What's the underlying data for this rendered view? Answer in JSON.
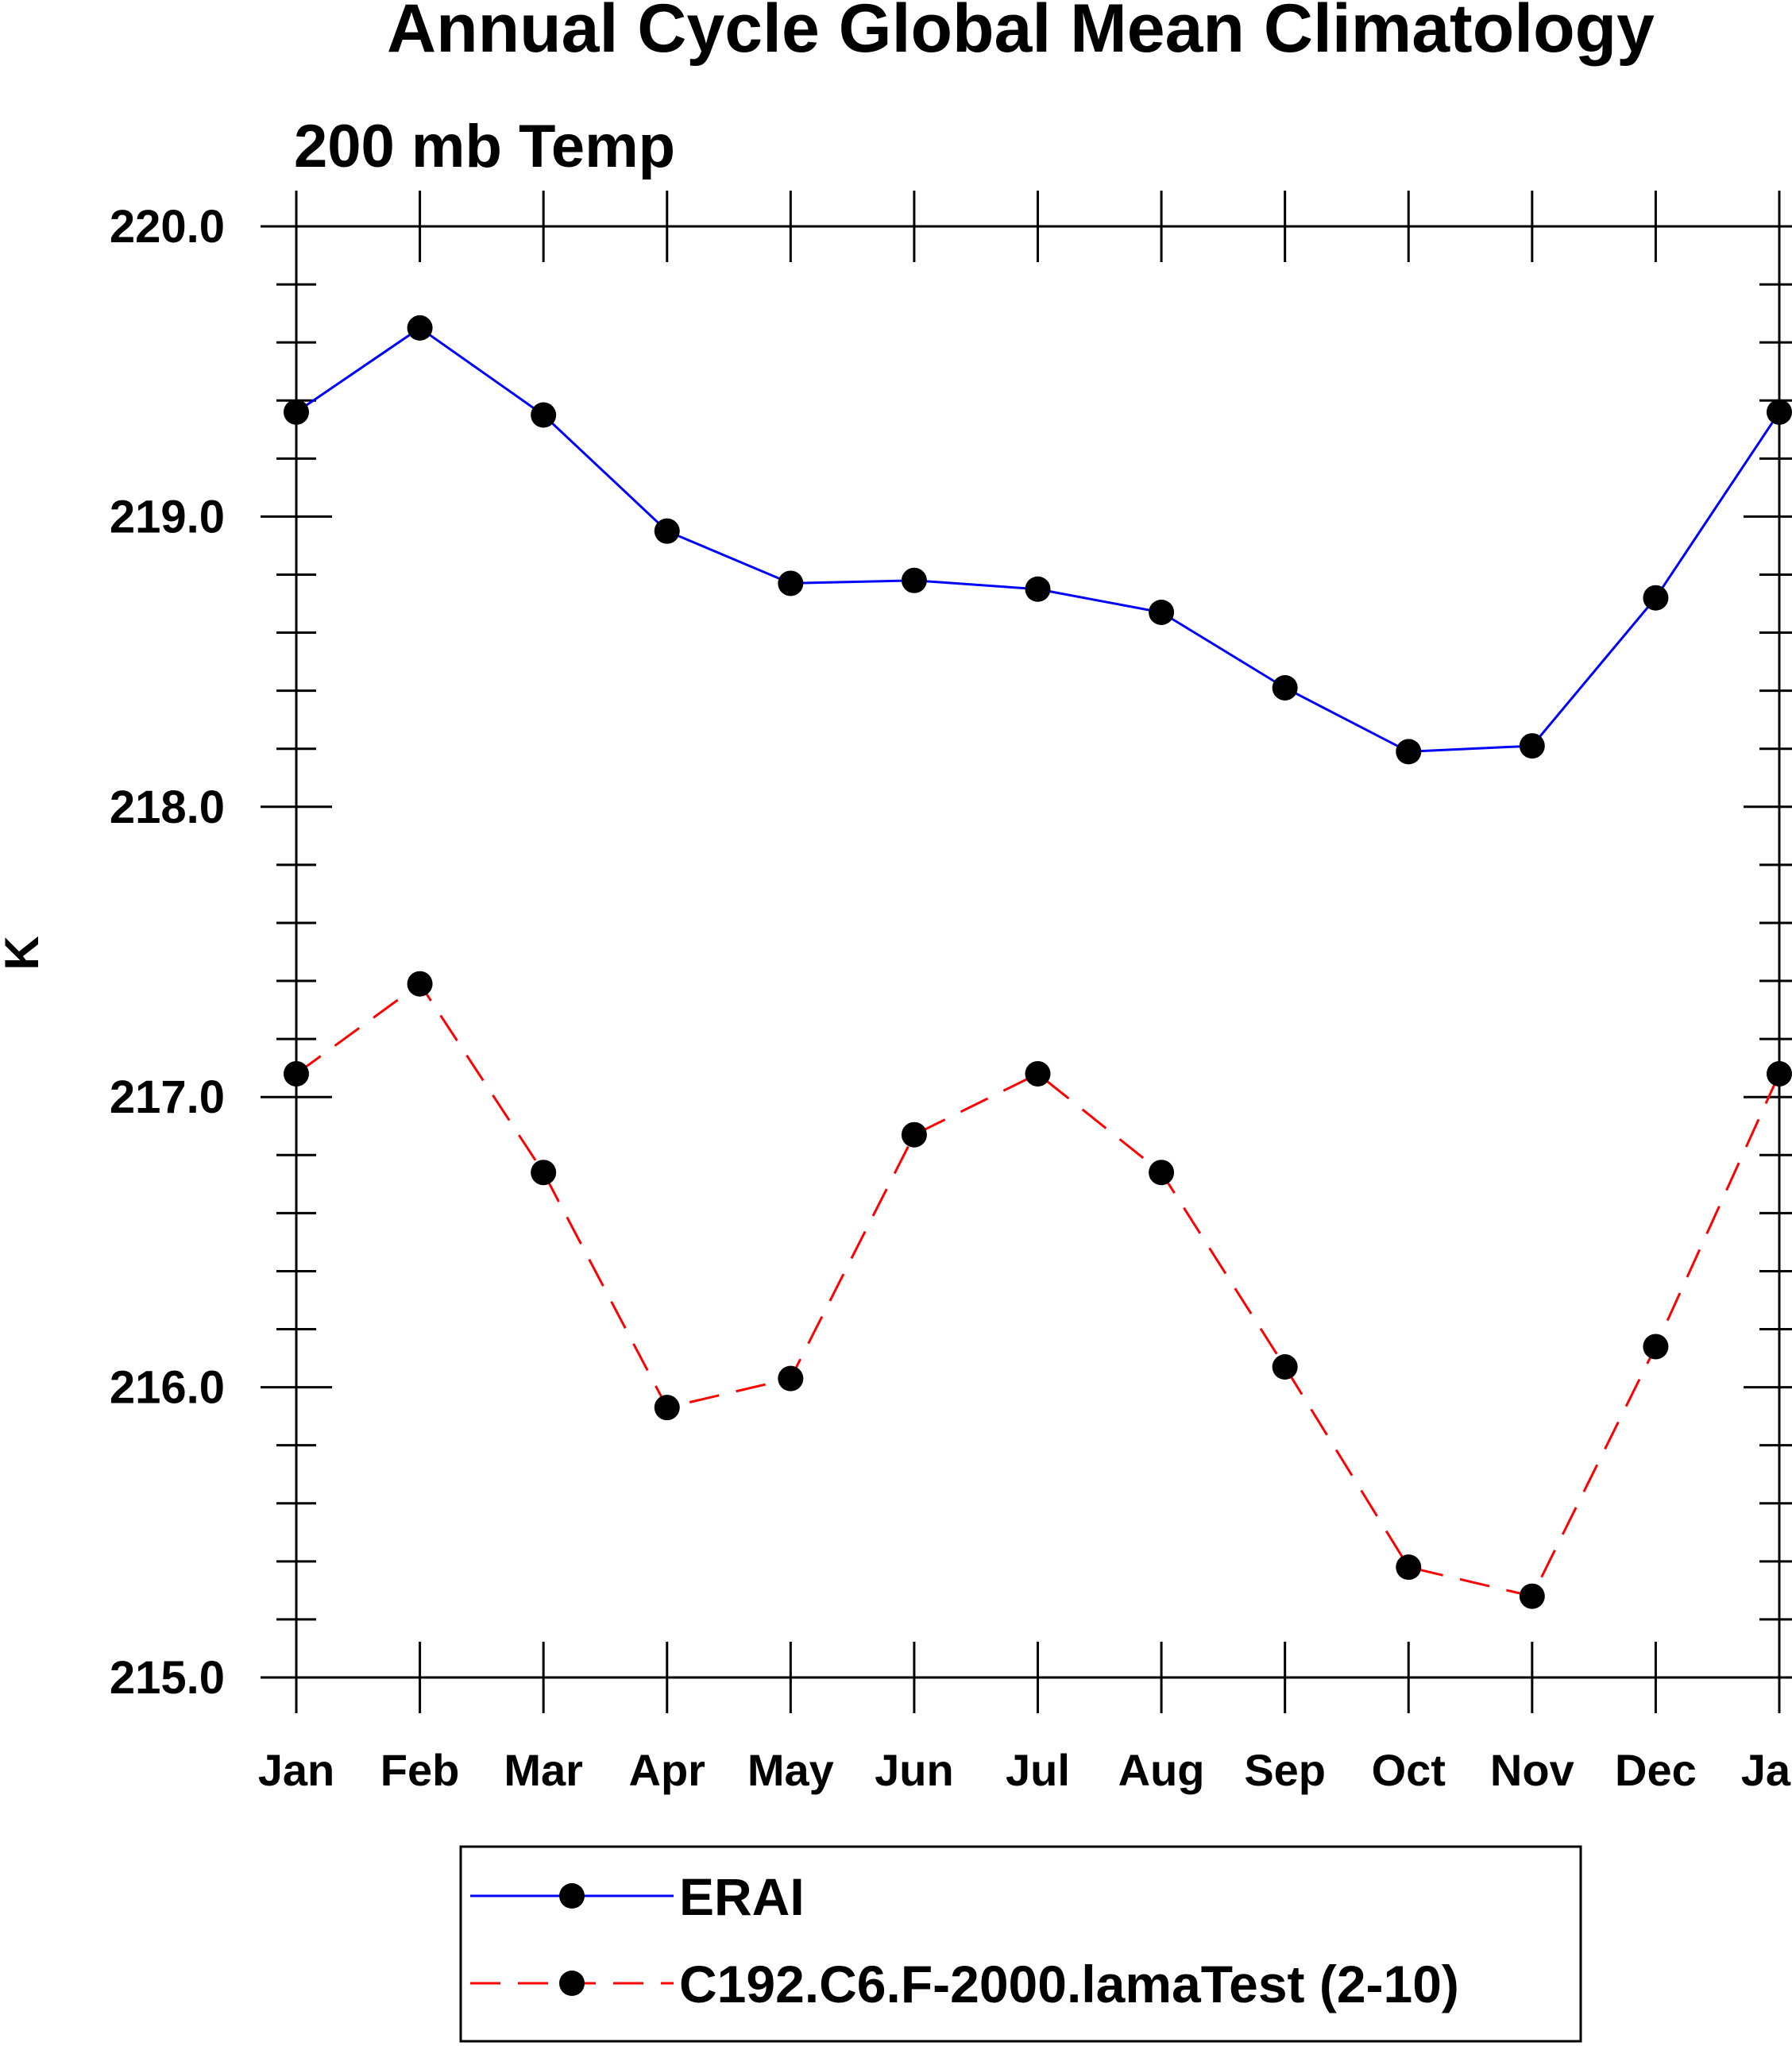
{
  "chart_data": {
    "type": "line",
    "title": "Annual Cycle Global Mean Climatology",
    "subtitle": "200 mb Temp",
    "xlabel": "",
    "ylabel": "K",
    "categories": [
      "Jan",
      "Feb",
      "Mar",
      "Apr",
      "May",
      "Jun",
      "Jul",
      "Aug",
      "Sep",
      "Oct",
      "Nov",
      "Dec",
      "Jan"
    ],
    "ylim": [
      215.0,
      220.0
    ],
    "yticks": [
      "215.0",
      "216.0",
      "217.0",
      "218.0",
      "219.0",
      "220.0"
    ],
    "y_minor_step": 0.2,
    "grid": false,
    "legend_position": "bottom-center",
    "series": [
      {
        "name": "ERAI",
        "color": "#0000ff",
        "dash": "solid",
        "marker": "filled-circle",
        "values": [
          219.36,
          219.65,
          219.35,
          218.95,
          218.77,
          218.78,
          218.75,
          218.67,
          218.41,
          218.19,
          218.21,
          218.72,
          219.36
        ]
      },
      {
        "name": "C192.C6.F-2000.lamaTest (2-10)",
        "color": "#ff0000",
        "dash": "dashed",
        "marker": "filled-circle",
        "values": [
          217.08,
          217.39,
          216.74,
          215.93,
          216.03,
          216.87,
          217.08,
          216.74,
          216.07,
          215.38,
          215.28,
          216.14,
          217.08
        ]
      }
    ]
  }
}
